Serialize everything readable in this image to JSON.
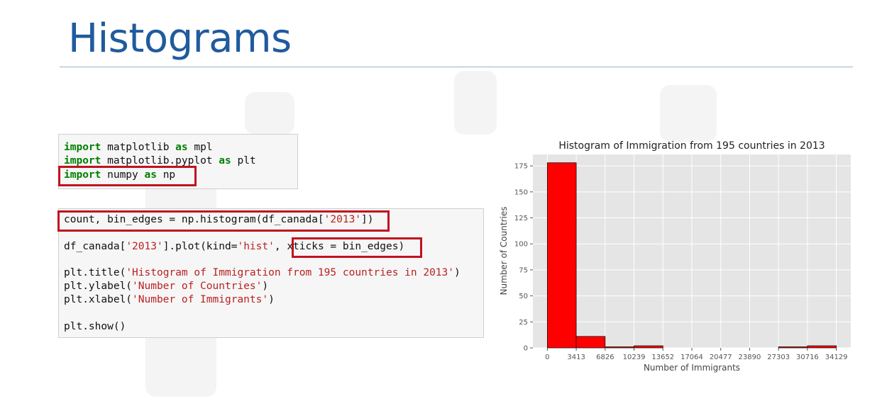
{
  "slide": {
    "title": "Histograms"
  },
  "cell1": {
    "lines": [
      [
        {
          "t": "import",
          "k": "kw"
        },
        {
          "t": " matplotlib ",
          "k": ""
        },
        {
          "t": "as",
          "k": "kw"
        },
        {
          "t": " mpl",
          "k": ""
        }
      ],
      [
        {
          "t": "import",
          "k": "kw"
        },
        {
          "t": " matplotlib.pyplot ",
          "k": ""
        },
        {
          "t": "as",
          "k": "kw"
        },
        {
          "t": " plt",
          "k": ""
        }
      ],
      [
        {
          "t": "import",
          "k": "kw"
        },
        {
          "t": " numpy ",
          "k": ""
        },
        {
          "t": "as",
          "k": "kw"
        },
        {
          "t": " np",
          "k": ""
        }
      ]
    ]
  },
  "cell2": {
    "lines": [
      [
        {
          "t": "count, bin_edges = np.histogram(df_canada[",
          "k": ""
        },
        {
          "t": "'2013'",
          "k": "str"
        },
        {
          "t": "])",
          "k": ""
        }
      ],
      [],
      [
        {
          "t": "df_canada[",
          "k": ""
        },
        {
          "t": "'2013'",
          "k": "str"
        },
        {
          "t": "].plot(kind=",
          "k": ""
        },
        {
          "t": "'hist'",
          "k": "str"
        },
        {
          "t": ", xticks = bin_edges)",
          "k": ""
        }
      ],
      [],
      [
        {
          "t": "plt.title(",
          "k": ""
        },
        {
          "t": "'Histogram of Immigration from 195 countries in 2013'",
          "k": "str"
        },
        {
          "t": ")",
          "k": ""
        }
      ],
      [
        {
          "t": "plt.ylabel(",
          "k": ""
        },
        {
          "t": "'Number of Countries'",
          "k": "str"
        },
        {
          "t": ")",
          "k": ""
        }
      ],
      [
        {
          "t": "plt.xlabel(",
          "k": ""
        },
        {
          "t": "'Number of Immigrants'",
          "k": "str"
        },
        {
          "t": ")",
          "k": ""
        }
      ],
      [],
      [
        {
          "t": "plt.show()",
          "k": ""
        }
      ]
    ]
  },
  "colors": {
    "title": "#1f5b9e",
    "highlight": "#c1121f",
    "keyword": "#008000",
    "string": "#ba2121",
    "bar": "#ff0000",
    "plot_bg": "#e5e5e5"
  },
  "chart_data": {
    "type": "bar",
    "title": "Histogram of Immigration from 195 countries in 2013",
    "xlabel": "Number of Immigrants",
    "ylabel": "Number of Countries",
    "bin_edges": [
      0,
      3413,
      6826,
      10239,
      13652,
      17064,
      20477,
      23890,
      27303,
      30716,
      34129
    ],
    "tick_labels": [
      "0",
      "3413",
      "6826",
      "10239",
      "13652",
      "17064",
      "20477",
      "23890",
      "27303",
      "30716",
      "34129"
    ],
    "values": [
      178,
      11,
      1,
      2,
      0,
      0,
      0,
      0,
      1,
      2
    ],
    "yticks": [
      0,
      25,
      50,
      75,
      100,
      125,
      150,
      175
    ],
    "ylim": [
      0,
      186
    ],
    "xlim": [
      -1707,
      35836
    ],
    "grid": true
  }
}
